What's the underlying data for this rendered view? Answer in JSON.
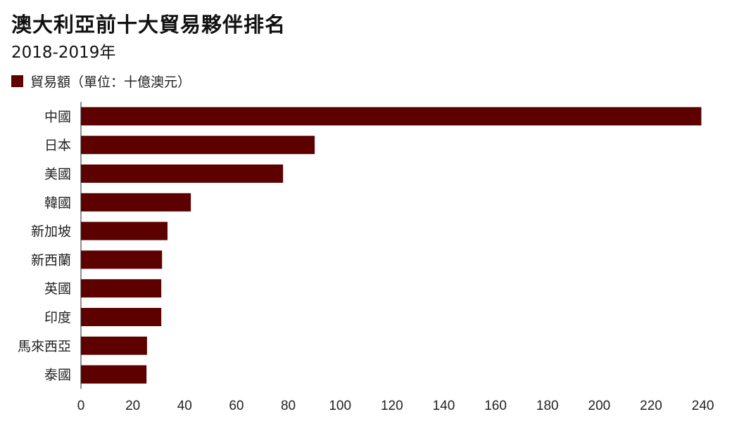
{
  "chart_data": {
    "type": "bar",
    "orientation": "horizontal",
    "title": "澳大利亞前十大貿易夥伴排名",
    "subtitle": "2018-2019年",
    "categories": [
      "中國",
      "日本",
      "美國",
      "韓國",
      "新加坡",
      "新西蘭",
      "英國",
      "印度",
      "馬來西亞",
      "泰國"
    ],
    "series": [
      {
        "name": "貿易額（單位：十億澳元）",
        "values": [
          239.4,
          90.2,
          78.0,
          42.4,
          33.4,
          31.3,
          31.0,
          31.0,
          25.5,
          25.3
        ]
      }
    ],
    "xlim": [
      0,
      240
    ],
    "xticks": [
      0,
      20,
      40,
      60,
      80,
      100,
      120,
      140,
      160,
      180,
      200,
      220,
      240
    ],
    "grid": false,
    "legend_position": "top-left",
    "colors": {
      "bar": "#5c0000"
    }
  }
}
